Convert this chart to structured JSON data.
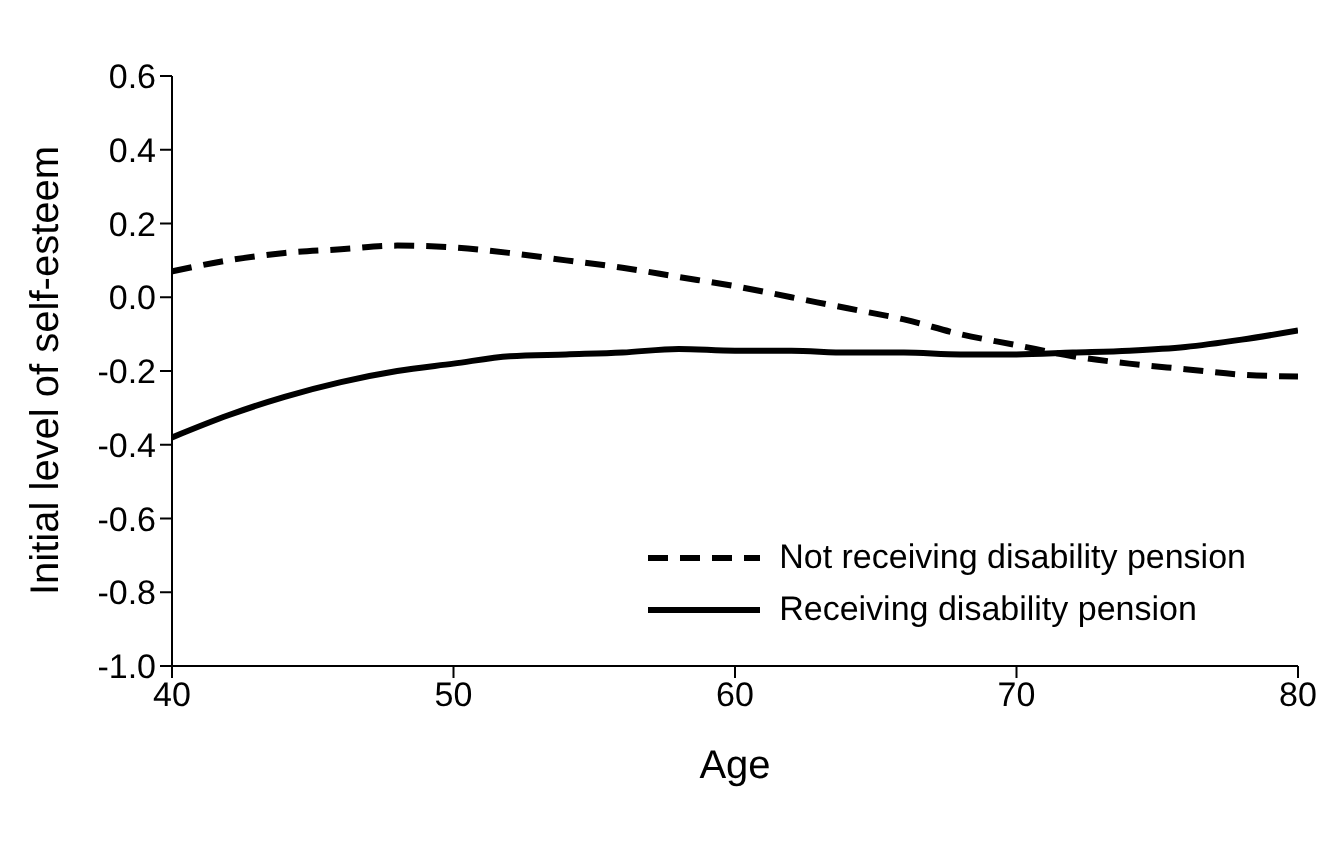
{
  "chart_data": {
    "type": "line",
    "xlabel": "Age",
    "ylabel": "Initial level of self-esteem",
    "x": [
      40,
      42,
      44,
      46,
      48,
      50,
      52,
      54,
      56,
      58,
      60,
      62,
      64,
      66,
      68,
      70,
      72,
      74,
      76,
      78,
      80
    ],
    "series": [
      {
        "name": "Not receiving disability pension",
        "color": "#000000",
        "line_style": "dashed",
        "values": [
          0.07,
          0.1,
          0.12,
          0.13,
          0.14,
          0.135,
          0.12,
          0.1,
          0.08,
          0.055,
          0.03,
          0.0,
          -0.03,
          -0.06,
          -0.1,
          -0.13,
          -0.16,
          -0.18,
          -0.195,
          -0.21,
          -0.215
        ]
      },
      {
        "name": "Receiving disability pension",
        "color": "#000000",
        "line_style": "solid",
        "values": [
          -0.38,
          -0.32,
          -0.27,
          -0.23,
          -0.2,
          -0.18,
          -0.16,
          -0.155,
          -0.15,
          -0.14,
          -0.145,
          -0.145,
          -0.15,
          -0.15,
          -0.155,
          -0.155,
          -0.15,
          -0.145,
          -0.135,
          -0.115,
          -0.09
        ]
      }
    ],
    "xlim": [
      40,
      80
    ],
    "xticks": [
      40,
      50,
      60,
      70,
      80
    ],
    "ylim": [
      -1.0,
      0.6
    ],
    "yticks": [
      {
        "value": -1,
        "label": "-1.0"
      },
      -0.8,
      -0.6,
      -0.4,
      -0.2,
      {
        "value": 0,
        "label": "0.0"
      },
      0.2,
      0.4,
      0.6
    ],
    "grid": false,
    "legend": "bottom right",
    "marker": "none"
  }
}
